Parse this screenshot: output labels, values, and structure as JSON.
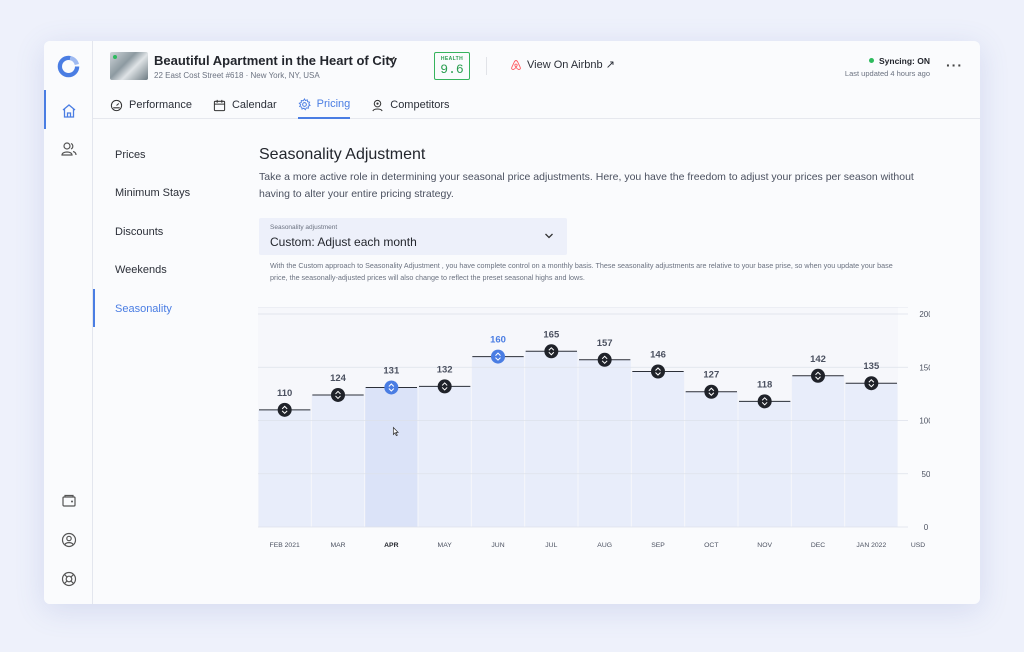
{
  "header": {
    "title": "Beautiful Apartment in the Heart of City",
    "address": "22 East Cost Street #618 · New York, NY, USA",
    "health_label": "HEALTH",
    "health_value": "9.6",
    "airbnb_link": "View On Airbnb ↗",
    "sync_status": "Syncing: ON",
    "last_updated": "Last updated 4 hours ago",
    "more": "···"
  },
  "tabs": [
    {
      "label": "Performance",
      "icon": "gauge-icon"
    },
    {
      "label": "Calendar",
      "icon": "calendar-icon"
    },
    {
      "label": "Pricing",
      "icon": "gear-icon",
      "active": true
    },
    {
      "label": "Competitors",
      "icon": "location-pin-icon"
    }
  ],
  "menu": [
    {
      "label": "Prices"
    },
    {
      "label": "Minimum Stays"
    },
    {
      "label": "Discounts"
    },
    {
      "label": "Weekends"
    },
    {
      "label": "Seasonality",
      "active": true
    }
  ],
  "content": {
    "title": "Seasonality Adjustment",
    "description": "Take a more active role in determining your seasonal price adjustments. Here, you have the freedom to adjust your prices per season without having to alter your entire pricing strategy.",
    "select_label": "Seasonality adjustment",
    "select_value": "Custom: Adjust each month",
    "note": "With the Custom approach to Seasonality Adjustment , you have complete control on a monthly basis. These seasonality adjustments are relative to your base prise, so when you update your base price, the seasonally-adjusted prices will also change to reflect the preset seasonal highs and lows."
  },
  "colors": {
    "accent": "#4a7de3",
    "bar_fill": "#e8edfa",
    "bar_fill_hover": "#d9e2f8",
    "health_green": "#36b35d"
  },
  "chart_data": {
    "type": "bar",
    "categories": [
      "FEB 2021",
      "MAR",
      "APR",
      "MAY",
      "JUN",
      "JUL",
      "AUG",
      "SEP",
      "OCT",
      "NOV",
      "DEC",
      "JAN 2022"
    ],
    "values": [
      110,
      124,
      131,
      132,
      160,
      165,
      157,
      146,
      127,
      118,
      142,
      135
    ],
    "y_ticks": [
      "0",
      "50",
      "100",
      "150",
      "200"
    ],
    "y_unit": "USD",
    "ylim": [
      0,
      200
    ],
    "hovered_category": "APR",
    "active_category": "JUN",
    "grid": true
  }
}
